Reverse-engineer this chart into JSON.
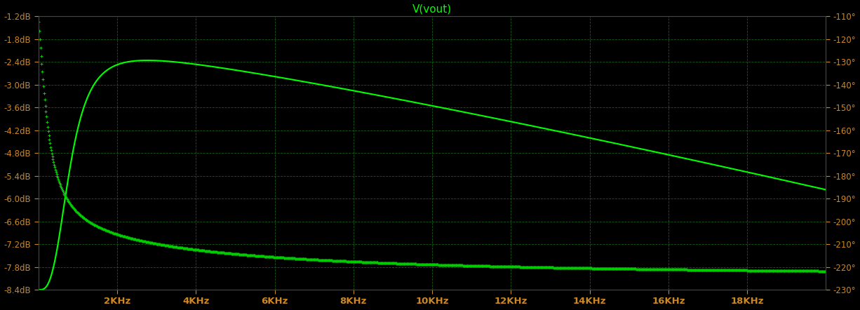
{
  "title": "V(vout)",
  "title_color": "#00ff00",
  "background_color": "#000000",
  "plot_bg_color": "#000000",
  "grid_color": "#1a5a1a",
  "axis_color": "#555555",
  "label_color": "#cc8822",
  "xmin": 0,
  "xmax": 20000,
  "xticks": [
    2000,
    4000,
    6000,
    8000,
    10000,
    12000,
    14000,
    16000,
    18000
  ],
  "xtick_labels": [
    "2KHz",
    "4KHz",
    "6KHz",
    "8KHz",
    "10KHz",
    "12KHz",
    "14KHz",
    "16KHz",
    "18KHz"
  ],
  "ymin_db": -8.4,
  "ymax_db": -1.2,
  "yticks_db": [
    -1.2,
    -1.8,
    -2.4,
    -3.0,
    -3.6,
    -4.2,
    -4.8,
    -5.4,
    -6.0,
    -6.6,
    -7.2,
    -7.8,
    -8.4
  ],
  "ytick_labels_db": [
    "-1.2dB",
    "-1.8dB",
    "-2.4dB",
    "-3.0dB",
    "-3.6dB",
    "-4.2dB",
    "-4.8dB",
    "-5.4dB",
    "-6.0dB",
    "-6.6dB",
    "-7.2dB",
    "-7.8dB",
    "-8.4dB"
  ],
  "ymin_phase": -230,
  "ymax_phase": -110,
  "yticks_phase": [
    -110,
    -120,
    -130,
    -140,
    -150,
    -160,
    -170,
    -180,
    -190,
    -200,
    -210,
    -220,
    -230
  ],
  "ytick_labels_phase": [
    "-110°",
    "-120°",
    "-130°",
    "-140°",
    "-150°",
    "-160°",
    "-170°",
    "-180°",
    "-190°",
    "-200°",
    "-210°",
    "-220°",
    "-230°"
  ],
  "mag_color": "#00ff00",
  "phase_color": "#00cc00",
  "mag_linewidth": 1.5,
  "phase_markersize": 3.5
}
